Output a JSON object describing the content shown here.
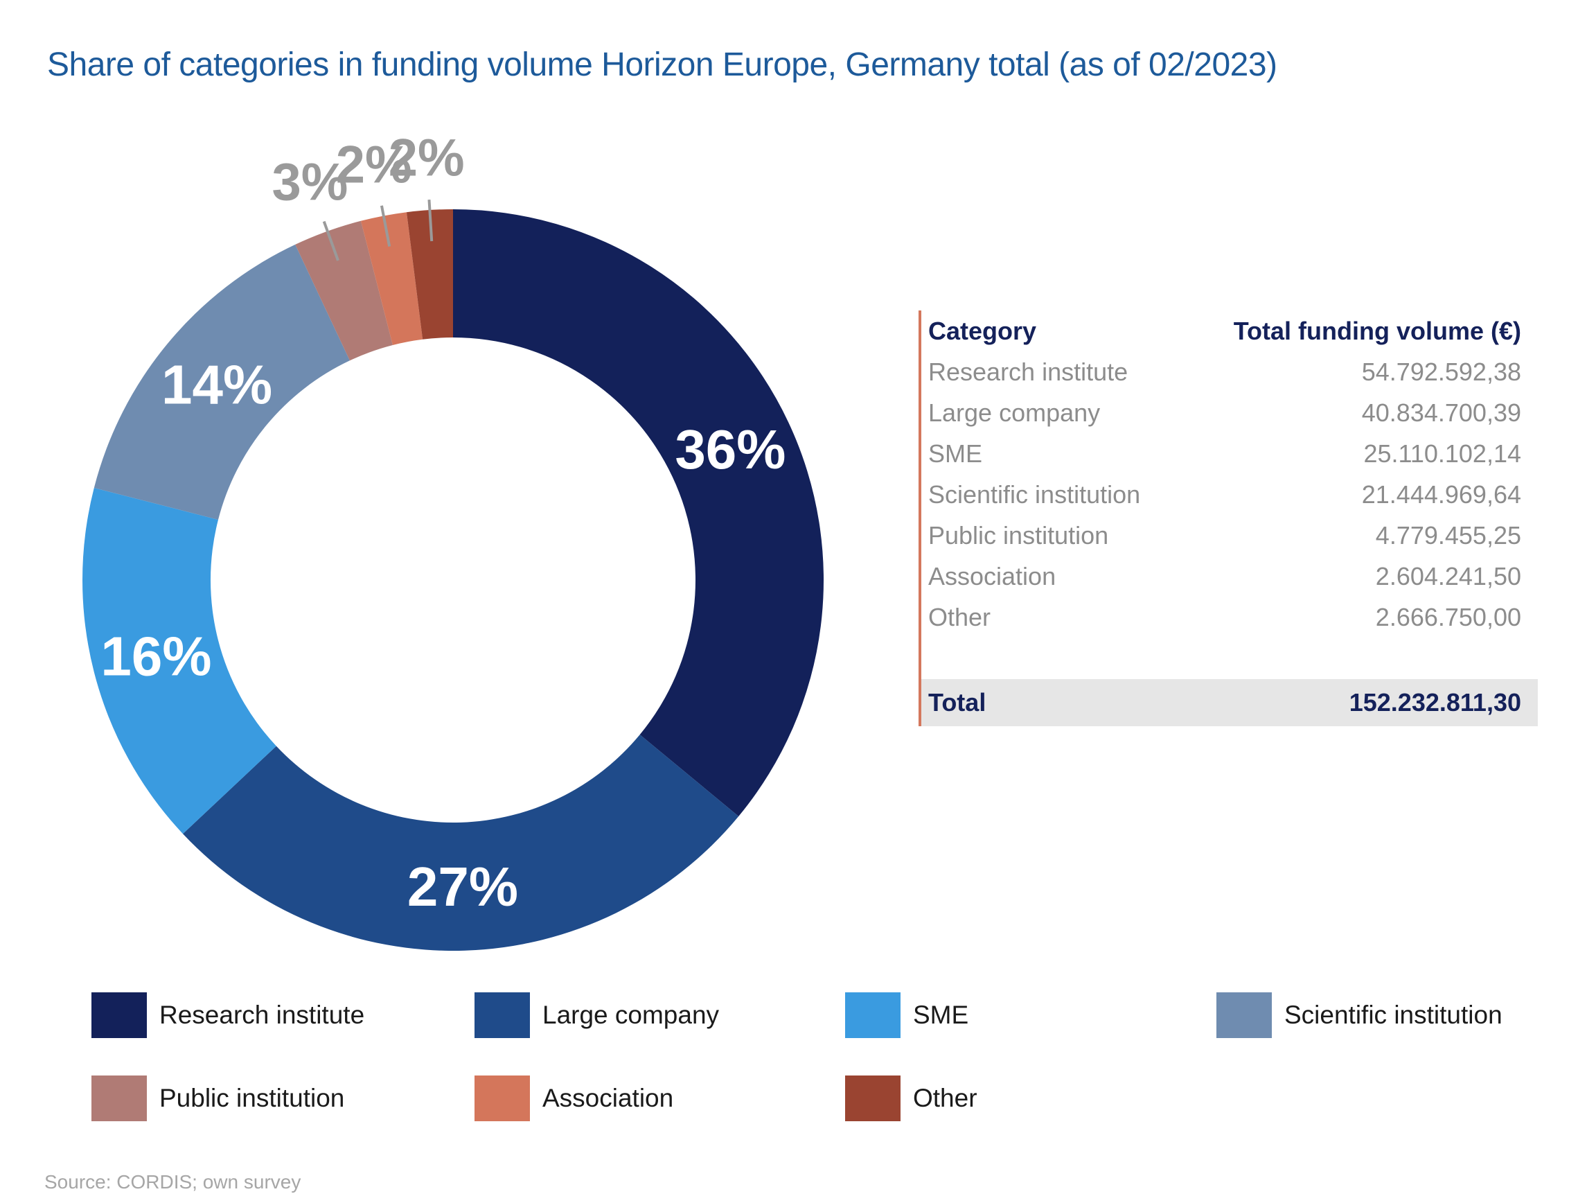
{
  "title": "Share of categories in funding volume Horizon Europe, Germany total (as of 02/2023)",
  "chart_data": {
    "type": "pie",
    "title": "Share of categories in funding volume Horizon Europe, Germany total (as of 02/2023)",
    "categories": [
      "Research institute",
      "Large company",
      "SME",
      "Scientific institution",
      "Public institution",
      "Association",
      "Other"
    ],
    "values": [
      36,
      27,
      16,
      14,
      3,
      2,
      2
    ],
    "labels": [
      "36%",
      "27%",
      "16%",
      "14%",
      "3%",
      "2%",
      "2%"
    ],
    "unit": "%",
    "colors": [
      "#13215a",
      "#1f4b8a",
      "#3a9be0",
      "#6f8cb0",
      "#b07b75",
      "#d4765b",
      "#9a4431"
    ],
    "label_colors": [
      "#ffffff",
      "#ffffff",
      "#ffffff",
      "#ffffff",
      "#9a9a9a",
      "#9a9a9a",
      "#9a9a9a"
    ],
    "hole": true,
    "legend_position": "bottom"
  },
  "table": {
    "header": {
      "category": "Category",
      "value": "Total funding volume (€)"
    },
    "rows": [
      {
        "category": "Research institute",
        "value": "54.792.592,38"
      },
      {
        "category": "Large company",
        "value": "40.834.700,39"
      },
      {
        "category": "SME",
        "value": "25.110.102,14"
      },
      {
        "category": "Scientific institution",
        "value": "21.444.969,64"
      },
      {
        "category": "Public institution",
        "value": "4.779.455,25"
      },
      {
        "category": "Association",
        "value": "2.604.241,50"
      },
      {
        "category": "Other",
        "value": "2.666.750,00"
      }
    ],
    "total": {
      "category": "Total",
      "value": "152.232.811,30"
    }
  },
  "legend": [
    {
      "label": "Research institute",
      "color": "#13215a"
    },
    {
      "label": "Large company",
      "color": "#1f4b8a"
    },
    {
      "label": "SME",
      "color": "#3a9be0"
    },
    {
      "label": "Scientific institution",
      "color": "#6f8cb0"
    },
    {
      "label": "Public institution",
      "color": "#b07b75"
    },
    {
      "label": "Association",
      "color": "#d4765b"
    },
    {
      "label": "Other",
      "color": "#9a4431"
    }
  ],
  "source": "Source: CORDIS; own survey"
}
